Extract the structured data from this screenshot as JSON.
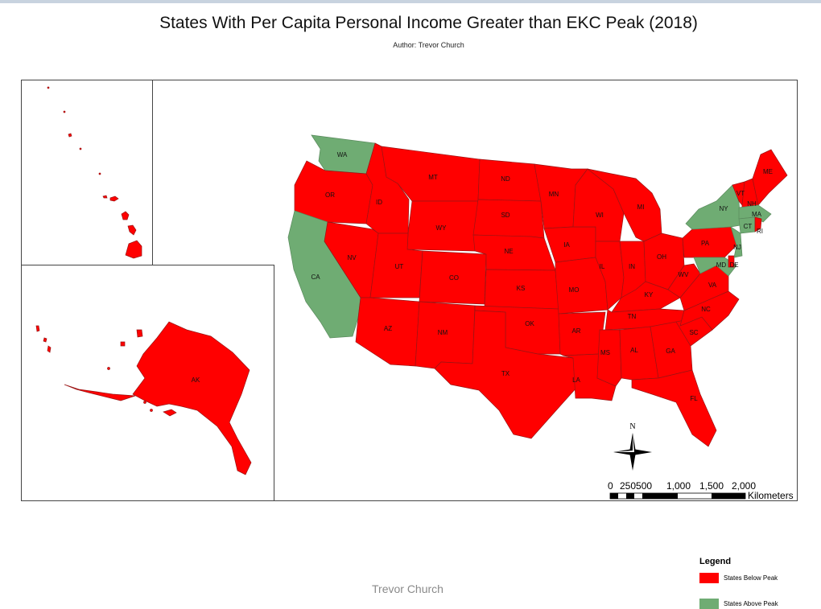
{
  "title": "States With Per Capita Personal Income Greater than EKC Peak (2018)",
  "author": "Author: Trevor Church",
  "watermark": "Trevor Church",
  "colors": {
    "below_peak": "#ff0000",
    "above_peak": "#6fac73"
  },
  "legend": {
    "title": "Legend",
    "items": [
      {
        "label": "States Below Peak",
        "color": "#ff0000"
      },
      {
        "label": "States Above Peak",
        "color": "#6fac73"
      }
    ]
  },
  "north_arrow": {
    "letter": "N"
  },
  "scale_bar": {
    "ticks": [
      "0",
      "250500",
      "1,000",
      "1,500",
      "2,000"
    ],
    "unit": "Kilometers"
  },
  "states": {
    "below_peak": [
      "AK",
      "AL",
      "AR",
      "AZ",
      "CO",
      "DE",
      "FL",
      "GA",
      "HI",
      "IA",
      "ID",
      "IL",
      "IN",
      "KS",
      "KY",
      "LA",
      "ME",
      "MI",
      "MN",
      "MO",
      "MS",
      "MT",
      "NC",
      "ND",
      "NE",
      "NH",
      "NM",
      "NV",
      "OH",
      "OK",
      "OR",
      "PA",
      "RI",
      "SC",
      "SD",
      "TN",
      "TX",
      "UT",
      "VA",
      "VT",
      "WI",
      "WV",
      "WY"
    ],
    "above_peak": [
      "CA",
      "CT",
      "MA",
      "MD",
      "NJ",
      "NY",
      "WA"
    ]
  },
  "labels": {
    "WA": "WA",
    "OR": "OR",
    "CA": "CA",
    "ID": "ID",
    "NV": "NV",
    "MT": "MT",
    "WY": "WY",
    "UT": "UT",
    "AZ": "AZ",
    "CO": "CO",
    "NM": "NM",
    "ND": "ND",
    "SD": "SD",
    "NE": "NE",
    "KS": "KS",
    "OK": "OK",
    "TX": "TX",
    "MN": "MN",
    "IA": "IA",
    "MO": "MO",
    "AR": "AR",
    "LA": "LA",
    "WI": "WI",
    "IL": "IL",
    "MI": "MI",
    "IN": "IN",
    "OH": "OH",
    "KY": "KY",
    "TN": "TN",
    "MS": "MS",
    "AL": "AL",
    "GA": "GA",
    "FL": "FL",
    "SC": "SC",
    "NC": "NC",
    "VA": "VA",
    "WV": "WV",
    "PA": "PA",
    "NY": "NY",
    "VT": "VT",
    "NH": "NH",
    "ME": "ME",
    "MA": "MA",
    "RI": "RI",
    "CT": "CT",
    "NJ": "NJ",
    "DE": "DE",
    "MD": "MD",
    "AK": "AK"
  }
}
